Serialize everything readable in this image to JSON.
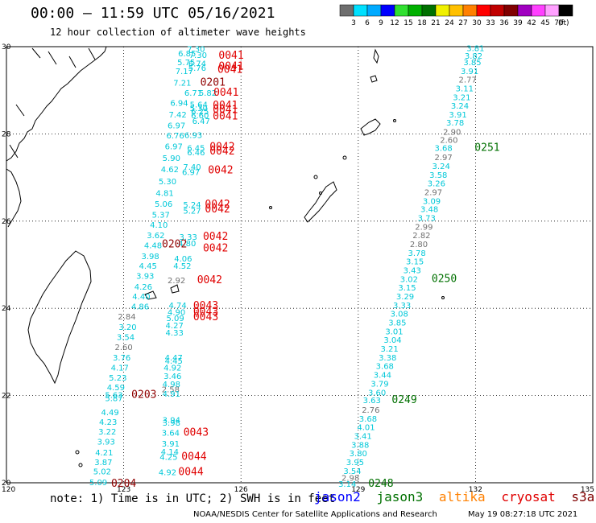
{
  "title": "00:00 — 11:59 UTC 05/16/2021",
  "subtitle": "12 hour collection of altimeter wave heights",
  "legend": {
    "unit": "(ft)",
    "bins": [
      {
        "color": "#6e6e6e",
        "label": "3"
      },
      {
        "color": "#00e0ff",
        "label": "6"
      },
      {
        "color": "#00aaff",
        "label": "9"
      },
      {
        "color": "#0000ff",
        "label": "12"
      },
      {
        "color": "#30e030",
        "label": "15"
      },
      {
        "color": "#00b000",
        "label": "18"
      },
      {
        "color": "#007000",
        "label": "21"
      },
      {
        "color": "#f0f000",
        "label": "24"
      },
      {
        "color": "#ffc000",
        "label": "27"
      },
      {
        "color": "#ff8000",
        "label": "30"
      },
      {
        "color": "#ff0000",
        "label": "33"
      },
      {
        "color": "#c00000",
        "label": "36"
      },
      {
        "color": "#800000",
        "label": "39"
      },
      {
        "color": "#a000c0",
        "label": "42"
      },
      {
        "color": "#ff40ff",
        "label": "45"
      },
      {
        "color": "#ffa0ff",
        "label": "70"
      },
      {
        "color": "#000000",
        "label": ""
      }
    ]
  },
  "axes": {
    "lon_labels": [
      "120",
      "123",
      "126",
      "129",
      "132",
      "135"
    ],
    "lat_labels": [
      "30",
      "28",
      "26",
      "24",
      "22",
      "20"
    ]
  },
  "colors": {
    "cyan": "#00c8d8",
    "grey": "#707070",
    "red": "#e00000",
    "darkred": "#900000",
    "green": "#007000"
  },
  "map_values": [
    {
      "t": "7.30",
      "c": "cyan",
      "lon": 124.85,
      "lat": 29.95
    },
    {
      "t": "6.85",
      "c": "cyan",
      "lon": 124.62,
      "lat": 29.85
    },
    {
      "t": "7.30",
      "c": "cyan",
      "lon": 124.9,
      "lat": 29.82
    },
    {
      "t": "5.75",
      "c": "cyan",
      "lon": 124.6,
      "lat": 29.65
    },
    {
      "t": "6.74",
      "c": "cyan",
      "lon": 124.88,
      "lat": 29.62
    },
    {
      "t": "7.17",
      "c": "cyan",
      "lon": 124.55,
      "lat": 29.45
    },
    {
      "t": "5.76",
      "c": "cyan",
      "lon": 124.88,
      "lat": 29.52
    },
    {
      "t": "7.21",
      "c": "cyan",
      "lon": 124.5,
      "lat": 29.18
    },
    {
      "t": "6.71",
      "c": "cyan",
      "lon": 124.78,
      "lat": 28.95
    },
    {
      "t": "5.82",
      "c": "cyan",
      "lon": 125.15,
      "lat": 28.95
    },
    {
      "t": "6.94",
      "c": "cyan",
      "lon": 124.42,
      "lat": 28.72
    },
    {
      "t": "5.64",
      "c": "cyan",
      "lon": 124.92,
      "lat": 28.68
    },
    {
      "t": "7.42",
      "c": "cyan",
      "lon": 124.38,
      "lat": 28.45
    },
    {
      "t": "5.30",
      "c": "cyan",
      "lon": 124.92,
      "lat": 28.6
    },
    {
      "t": "6.25",
      "c": "cyan",
      "lon": 124.95,
      "lat": 28.52
    },
    {
      "t": "6.60",
      "c": "cyan",
      "lon": 124.95,
      "lat": 28.43
    },
    {
      "t": "6.97",
      "c": "cyan",
      "lon": 124.35,
      "lat": 28.2
    },
    {
      "t": "6.47",
      "c": "cyan",
      "lon": 124.98,
      "lat": 28.3
    },
    {
      "t": "6.76",
      "c": "cyan",
      "lon": 124.32,
      "lat": 27.97
    },
    {
      "t": "6.93",
      "c": "cyan",
      "lon": 124.78,
      "lat": 27.98
    },
    {
      "t": "6.97",
      "c": "cyan",
      "lon": 124.28,
      "lat": 27.72
    },
    {
      "t": "6.45",
      "c": "cyan",
      "lon": 124.85,
      "lat": 27.68
    },
    {
      "t": "6.46",
      "c": "cyan",
      "lon": 124.85,
      "lat": 27.58
    },
    {
      "t": "5.90",
      "c": "cyan",
      "lon": 124.22,
      "lat": 27.45
    },
    {
      "t": "4.62",
      "c": "cyan",
      "lon": 124.18,
      "lat": 27.2
    },
    {
      "t": "7.40",
      "c": "cyan",
      "lon": 124.75,
      "lat": 27.25
    },
    {
      "t": "6.97",
      "c": "cyan",
      "lon": 124.72,
      "lat": 27.13
    },
    {
      "t": "5.30",
      "c": "cyan",
      "lon": 124.12,
      "lat": 26.92
    },
    {
      "t": "4.81",
      "c": "cyan",
      "lon": 124.05,
      "lat": 26.65
    },
    {
      "t": "5.06",
      "c": "cyan",
      "lon": 124.02,
      "lat": 26.4
    },
    {
      "t": "5.24",
      "c": "cyan",
      "lon": 124.75,
      "lat": 26.38
    },
    {
      "t": "5.37",
      "c": "cyan",
      "lon": 123.95,
      "lat": 26.15
    },
    {
      "t": "5.27",
      "c": "cyan",
      "lon": 124.75,
      "lat": 26.25
    },
    {
      "t": "4.10",
      "c": "cyan",
      "lon": 123.9,
      "lat": 25.92
    },
    {
      "t": "3.62",
      "c": "cyan",
      "lon": 123.82,
      "lat": 25.68
    },
    {
      "t": "3.33",
      "c": "cyan",
      "lon": 124.65,
      "lat": 25.65
    },
    {
      "t": "4.48",
      "c": "cyan",
      "lon": 123.75,
      "lat": 25.45
    },
    {
      "t": "4.80",
      "c": "cyan",
      "lon": 124.62,
      "lat": 25.5
    },
    {
      "t": "3.98",
      "c": "cyan",
      "lon": 123.68,
      "lat": 25.2
    },
    {
      "t": "4.06",
      "c": "cyan",
      "lon": 124.52,
      "lat": 25.15
    },
    {
      "t": "4.45",
      "c": "cyan",
      "lon": 123.62,
      "lat": 24.98
    },
    {
      "t": "4.52",
      "c": "cyan",
      "lon": 124.5,
      "lat": 24.98
    },
    {
      "t": "3.93",
      "c": "cyan",
      "lon": 123.55,
      "lat": 24.75
    },
    {
      "t": "2.92",
      "c": "grey",
      "lon": 124.35,
      "lat": 24.65
    },
    {
      "t": "4.26",
      "c": "cyan",
      "lon": 123.5,
      "lat": 24.5
    },
    {
      "t": "4.40",
      "c": "cyan",
      "lon": 123.45,
      "lat": 24.28
    },
    {
      "t": "4.74",
      "c": "cyan",
      "lon": 124.38,
      "lat": 24.08
    },
    {
      "t": "4.86",
      "c": "cyan",
      "lon": 123.42,
      "lat": 24.05
    },
    {
      "t": "4.90",
      "c": "cyan",
      "lon": 124.35,
      "lat": 23.92
    },
    {
      "t": "2.84",
      "c": "grey",
      "lon": 123.08,
      "lat": 23.82
    },
    {
      "t": "5.09",
      "c": "cyan",
      "lon": 124.32,
      "lat": 23.78
    },
    {
      "t": "3.20",
      "c": "cyan",
      "lon": 123.1,
      "lat": 23.58
    },
    {
      "t": "4.27",
      "c": "cyan",
      "lon": 124.3,
      "lat": 23.62
    },
    {
      "t": "3.54",
      "c": "cyan",
      "lon": 123.05,
      "lat": 23.35
    },
    {
      "t": "4.33",
      "c": "cyan",
      "lon": 124.3,
      "lat": 23.45
    },
    {
      "t": "2.60",
      "c": "grey",
      "lon": 123.0,
      "lat": 23.12
    },
    {
      "t": "3.76",
      "c": "cyan",
      "lon": 122.95,
      "lat": 22.88
    },
    {
      "t": "4.47",
      "c": "cyan",
      "lon": 124.28,
      "lat": 22.88
    },
    {
      "t": "4.45",
      "c": "cyan",
      "lon": 124.28,
      "lat": 22.8
    },
    {
      "t": "4.17",
      "c": "cyan",
      "lon": 122.9,
      "lat": 22.65
    },
    {
      "t": "4.92",
      "c": "cyan",
      "lon": 124.25,
      "lat": 22.65
    },
    {
      "t": "5.23",
      "c": "cyan",
      "lon": 122.85,
      "lat": 22.42
    },
    {
      "t": "3.46",
      "c": "cyan",
      "lon": 124.25,
      "lat": 22.45
    },
    {
      "t": "4.59",
      "c": "cyan",
      "lon": 122.8,
      "lat": 22.2
    },
    {
      "t": "4.98",
      "c": "cyan",
      "lon": 124.22,
      "lat": 22.27
    },
    {
      "t": "5.63",
      "c": "cyan",
      "lon": 122.75,
      "lat": 22.02
    },
    {
      "t": "2.58",
      "c": "grey",
      "lon": 124.2,
      "lat": 22.15
    },
    {
      "t": "5.87",
      "c": "cyan",
      "lon": 122.75,
      "lat": 21.95
    },
    {
      "t": "4.91",
      "c": "cyan",
      "lon": 124.22,
      "lat": 22.05
    },
    {
      "t": "4.49",
      "c": "cyan",
      "lon": 122.65,
      "lat": 21.62
    },
    {
      "t": "3.94",
      "c": "cyan",
      "lon": 124.22,
      "lat": 21.45
    },
    {
      "t": "4.23",
      "c": "cyan",
      "lon": 122.6,
      "lat": 21.4
    },
    {
      "t": "3.98",
      "c": "cyan",
      "lon": 124.22,
      "lat": 21.38
    },
    {
      "t": "3.22",
      "c": "cyan",
      "lon": 122.58,
      "lat": 21.18
    },
    {
      "t": "3.64",
      "c": "cyan",
      "lon": 124.2,
      "lat": 21.15
    },
    {
      "t": "3.93",
      "c": "cyan",
      "lon": 122.55,
      "lat": 20.95
    },
    {
      "t": "3.91",
      "c": "cyan",
      "lon": 124.2,
      "lat": 20.9
    },
    {
      "t": "4.21",
      "c": "cyan",
      "lon": 122.5,
      "lat": 20.7
    },
    {
      "t": "4.14",
      "c": "cyan",
      "lon": 124.18,
      "lat": 20.72
    },
    {
      "t": "3.87",
      "c": "cyan",
      "lon": 122.48,
      "lat": 20.48
    },
    {
      "t": "4.25",
      "c": "cyan",
      "lon": 124.15,
      "lat": 20.6
    },
    {
      "t": "5.02",
      "c": "cyan",
      "lon": 122.45,
      "lat": 20.27
    },
    {
      "t": "4.92",
      "c": "cyan",
      "lon": 124.12,
      "lat": 20.25
    },
    {
      "t": "5.09",
      "c": "cyan",
      "lon": 122.35,
      "lat": 20.02
    },
    {
      "t": "0041",
      "c": "red",
      "lon": 125.75,
      "lat": 29.8
    },
    {
      "t": "0041",
      "c": "red",
      "lon": 125.75,
      "lat": 29.55
    },
    {
      "t": "0041",
      "c": "red",
      "lon": 125.72,
      "lat": 29.47
    },
    {
      "t": "0201",
      "c": "darkred",
      "lon": 125.28,
      "lat": 29.18
    },
    {
      "t": "0041",
      "c": "red",
      "lon": 125.62,
      "lat": 28.95
    },
    {
      "t": "0041",
      "c": "red",
      "lon": 125.6,
      "lat": 28.65
    },
    {
      "t": "0041",
      "c": "red",
      "lon": 125.6,
      "lat": 28.55
    },
    {
      "t": "0041",
      "c": "red",
      "lon": 125.6,
      "lat": 28.4
    },
    {
      "t": "0042",
      "c": "red",
      "lon": 125.52,
      "lat": 27.7
    },
    {
      "t": "0042",
      "c": "red",
      "lon": 125.52,
      "lat": 27.6
    },
    {
      "t": "0042",
      "c": "red",
      "lon": 125.48,
      "lat": 27.17
    },
    {
      "t": "0042",
      "c": "red",
      "lon": 125.4,
      "lat": 26.38
    },
    {
      "t": "0042",
      "c": "red",
      "lon": 125.4,
      "lat": 26.27
    },
    {
      "t": "0042",
      "c": "red",
      "lon": 125.35,
      "lat": 25.65
    },
    {
      "t": "0202",
      "c": "darkred",
      "lon": 124.3,
      "lat": 25.47
    },
    {
      "t": "0042",
      "c": "red",
      "lon": 125.35,
      "lat": 25.38
    },
    {
      "t": "0042",
      "c": "red",
      "lon": 125.2,
      "lat": 24.65
    },
    {
      "t": "0043",
      "c": "red",
      "lon": 125.1,
      "lat": 24.06
    },
    {
      "t": "0043",
      "c": "red",
      "lon": 125.1,
      "lat": 23.92
    },
    {
      "t": "0043",
      "c": "red",
      "lon": 125.1,
      "lat": 23.8
    },
    {
      "t": "0203",
      "c": "darkred",
      "lon": 123.52,
      "lat": 22.02
    },
    {
      "t": "0043",
      "c": "red",
      "lon": 124.85,
      "lat": 21.15
    },
    {
      "t": "0044",
      "c": "red",
      "lon": 124.8,
      "lat": 20.6
    },
    {
      "t": "0044",
      "c": "red",
      "lon": 124.72,
      "lat": 20.25
    },
    {
      "t": "0204",
      "c": "darkred",
      "lon": 123.0,
      "lat": 19.98
    },
    {
      "t": "3.81",
      "c": "cyan",
      "lon": 132.0,
      "lat": 29.97
    },
    {
      "t": "3.82",
      "c": "cyan",
      "lon": 131.95,
      "lat": 29.8
    },
    {
      "t": "3.85",
      "c": "cyan",
      "lon": 131.92,
      "lat": 29.65
    },
    {
      "t": "3.91",
      "c": "cyan",
      "lon": 131.85,
      "lat": 29.45
    },
    {
      "t": "2.77",
      "c": "grey",
      "lon": 131.8,
      "lat": 29.25
    },
    {
      "t": "3.11",
      "c": "cyan",
      "lon": 131.72,
      "lat": 29.05
    },
    {
      "t": "3.21",
      "c": "cyan",
      "lon": 131.65,
      "lat": 28.85
    },
    {
      "t": "3.24",
      "c": "cyan",
      "lon": 131.6,
      "lat": 28.65
    },
    {
      "t": "3.91",
      "c": "cyan",
      "lon": 131.55,
      "lat": 28.45
    },
    {
      "t": "3.78",
      "c": "cyan",
      "lon": 131.48,
      "lat": 28.27
    },
    {
      "t": "2.90",
      "c": "grey",
      "lon": 131.4,
      "lat": 28.05
    },
    {
      "t": "2.60",
      "c": "grey",
      "lon": 131.32,
      "lat": 27.87
    },
    {
      "t": "3.68",
      "c": "cyan",
      "lon": 131.18,
      "lat": 27.68
    },
    {
      "t": "0251",
      "c": "green",
      "lon": 132.3,
      "lat": 27.68
    },
    {
      "t": "2.97",
      "c": "grey",
      "lon": 131.18,
      "lat": 27.47
    },
    {
      "t": "3.24",
      "c": "cyan",
      "lon": 131.12,
      "lat": 27.27
    },
    {
      "t": "3.58",
      "c": "cyan",
      "lon": 131.05,
      "lat": 27.07
    },
    {
      "t": "3.26",
      "c": "cyan",
      "lon": 131.0,
      "lat": 26.87
    },
    {
      "t": "2.97",
      "c": "grey",
      "lon": 130.92,
      "lat": 26.67
    },
    {
      "t": "3.09",
      "c": "cyan",
      "lon": 130.88,
      "lat": 26.47
    },
    {
      "t": "3.48",
      "c": "cyan",
      "lon": 130.82,
      "lat": 26.28
    },
    {
      "t": "3.73",
      "c": "cyan",
      "lon": 130.75,
      "lat": 26.08
    },
    {
      "t": "2.99",
      "c": "grey",
      "lon": 130.68,
      "lat": 25.88
    },
    {
      "t": "2.82",
      "c": "grey",
      "lon": 130.62,
      "lat": 25.68
    },
    {
      "t": "2.80",
      "c": "grey",
      "lon": 130.55,
      "lat": 25.48
    },
    {
      "t": "3.78",
      "c": "cyan",
      "lon": 130.5,
      "lat": 25.28
    },
    {
      "t": "3.15",
      "c": "cyan",
      "lon": 130.45,
      "lat": 25.08
    },
    {
      "t": "3.43",
      "c": "cyan",
      "lon": 130.38,
      "lat": 24.88
    },
    {
      "t": "3.02",
      "c": "cyan",
      "lon": 130.3,
      "lat": 24.68
    },
    {
      "t": "0250",
      "c": "green",
      "lon": 131.2,
      "lat": 24.68
    },
    {
      "t": "3.15",
      "c": "cyan",
      "lon": 130.25,
      "lat": 24.48
    },
    {
      "t": "3.29",
      "c": "cyan",
      "lon": 130.2,
      "lat": 24.28
    },
    {
      "t": "3.33",
      "c": "cyan",
      "lon": 130.12,
      "lat": 24.08
    },
    {
      "t": "3.08",
      "c": "cyan",
      "lon": 130.05,
      "lat": 23.88
    },
    {
      "t": "3.85",
      "c": "cyan",
      "lon": 130.0,
      "lat": 23.68
    },
    {
      "t": "3.01",
      "c": "cyan",
      "lon": 129.92,
      "lat": 23.48
    },
    {
      "t": "3.04",
      "c": "cyan",
      "lon": 129.88,
      "lat": 23.28
    },
    {
      "t": "3.21",
      "c": "cyan",
      "lon": 129.8,
      "lat": 23.08
    },
    {
      "t": "3.38",
      "c": "cyan",
      "lon": 129.75,
      "lat": 22.88
    },
    {
      "t": "3.68",
      "c": "cyan",
      "lon": 129.68,
      "lat": 22.68
    },
    {
      "t": "3.44",
      "c": "cyan",
      "lon": 129.62,
      "lat": 22.48
    },
    {
      "t": "3.79",
      "c": "cyan",
      "lon": 129.55,
      "lat": 22.28
    },
    {
      "t": "3.60",
      "c": "cyan",
      "lon": 129.48,
      "lat": 22.08
    },
    {
      "t": "3.63",
      "c": "cyan",
      "lon": 129.35,
      "lat": 21.9
    },
    {
      "t": "0249",
      "c": "green",
      "lon": 130.18,
      "lat": 21.9
    },
    {
      "t": "2.76",
      "c": "grey",
      "lon": 129.32,
      "lat": 21.68
    },
    {
      "t": "3.68",
      "c": "cyan",
      "lon": 129.25,
      "lat": 21.48
    },
    {
      "t": "4.01",
      "c": "cyan",
      "lon": 129.2,
      "lat": 21.28
    },
    {
      "t": "3.41",
      "c": "cyan",
      "lon": 129.12,
      "lat": 21.08
    },
    {
      "t": "3.88",
      "c": "cyan",
      "lon": 129.05,
      "lat": 20.88
    },
    {
      "t": "3.80",
      "c": "cyan",
      "lon": 129.0,
      "lat": 20.68
    },
    {
      "t": "3.95",
      "c": "cyan",
      "lon": 128.92,
      "lat": 20.48
    },
    {
      "t": "3.54",
      "c": "cyan",
      "lon": 128.85,
      "lat": 20.28
    },
    {
      "t": "2.98",
      "c": "grey",
      "lon": 128.8,
      "lat": 20.12
    },
    {
      "t": "3.14",
      "c": "cyan",
      "lon": 128.72,
      "lat": 19.98
    },
    {
      "t": "0248",
      "c": "green",
      "lon": 129.58,
      "lat": 19.98
    }
  ],
  "note": "note: 1) Time is in UTC; 2) SWH is in feet",
  "missions": [
    {
      "name": "jason2",
      "color": "#0000ff"
    },
    {
      "name": "jason3",
      "color": "#007000"
    },
    {
      "name": "altika",
      "color": "#ff8000"
    },
    {
      "name": "cryosat",
      "color": "#e00000"
    },
    {
      "name": "s3a",
      "color": "#800000"
    }
  ],
  "credit": "NOAA/NESDIS Center for Satellite Applications and Research",
  "timestamp": "May 19 08:27:18 UTC 2021"
}
